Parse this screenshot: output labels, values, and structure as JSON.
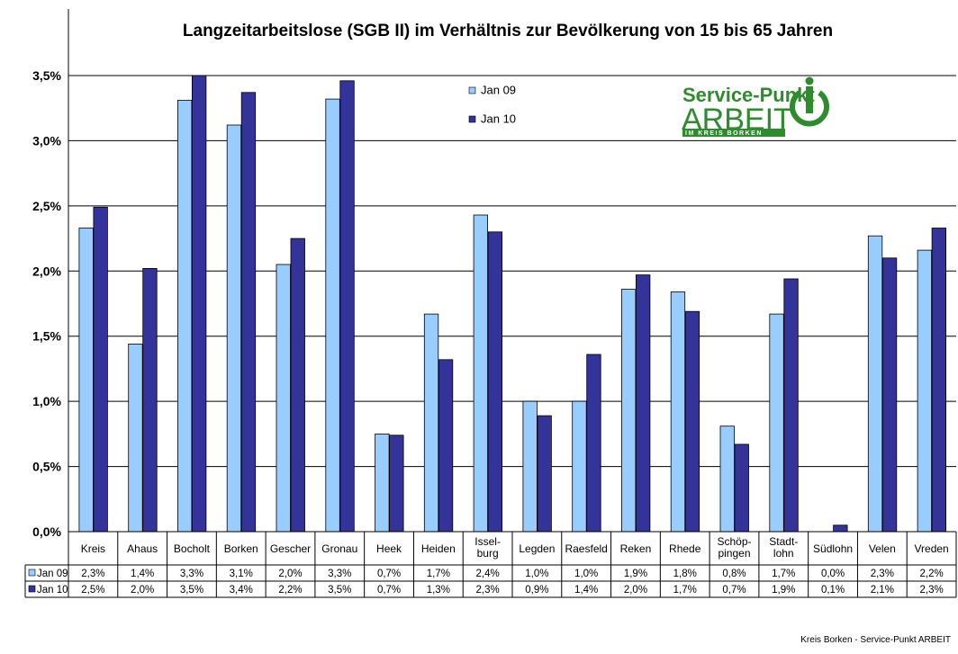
{
  "chart_data": {
    "type": "bar",
    "title": "Langzeitarbeitslose (SGB II) im Verhältnis zur Bevölkerung von 15 bis 65 Jahren",
    "categories": [
      "Kreis",
      "Ahaus",
      "Bocholt",
      "Borken",
      "Gescher",
      "Gronau",
      "Heek",
      "Heiden",
      "Issel-\nburg",
      "Legden",
      "Raesfeld",
      "Reken",
      "Rhede",
      "Schöp-\npingen",
      "Stadt-\nlohn",
      "Südlohn",
      "Velen",
      "Vreden"
    ],
    "series": [
      {
        "name": "Jan 09",
        "color": "#99ccff",
        "values": [
          2.33,
          1.44,
          3.31,
          3.12,
          2.05,
          3.32,
          0.75,
          1.67,
          2.43,
          1.0,
          1.0,
          1.86,
          1.84,
          0.81,
          1.67,
          0.0,
          2.27,
          2.16
        ],
        "labels": [
          "2,3%",
          "1,4%",
          "3,3%",
          "3,1%",
          "2,0%",
          "3,3%",
          "0,7%",
          "1,7%",
          "2,4%",
          "1,0%",
          "1,0%",
          "1,9%",
          "1,8%",
          "0,8%",
          "1,7%",
          "0,0%",
          "2,3%",
          "2,2%"
        ]
      },
      {
        "name": "Jan 10",
        "color": "#333399",
        "values": [
          2.49,
          2.02,
          3.5,
          3.37,
          2.25,
          3.46,
          0.74,
          1.32,
          2.3,
          0.89,
          1.36,
          1.97,
          1.69,
          0.67,
          1.94,
          0.05,
          2.1,
          2.33
        ],
        "labels": [
          "2,5%",
          "2,0%",
          "3,5%",
          "3,4%",
          "2,2%",
          "3,5%",
          "0,7%",
          "1,3%",
          "2,3%",
          "0,9%",
          "1,4%",
          "2,0%",
          "1,7%",
          "0,7%",
          "1,9%",
          "0,1%",
          "2,1%",
          "2,3%"
        ]
      }
    ],
    "ylim": [
      0,
      3.5
    ],
    "yticks": [
      0,
      0.5,
      1.0,
      1.5,
      2.0,
      2.5,
      3.0,
      3.5
    ],
    "ytick_labels": [
      "0,0%",
      "0,5%",
      "1,0%",
      "1,5%",
      "2,0%",
      "2,5%",
      "3,0%",
      "3,5%"
    ],
    "grid": true,
    "legend": "top-center",
    "data_table": true
  },
  "logo": {
    "line1": "Service-Punkt",
    "line2": "ARBEIT",
    "line3": "IM KREIS BORKEN",
    "color": "#2e8b2e"
  },
  "footer": "Kreis Borken - Service-Punkt ARBEIT"
}
